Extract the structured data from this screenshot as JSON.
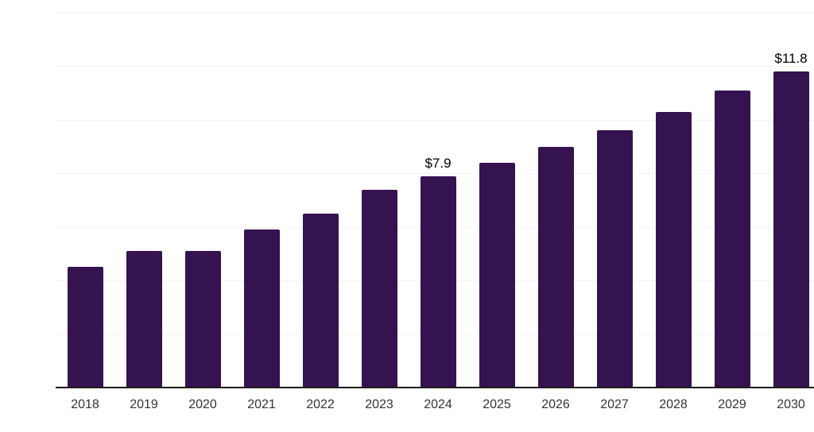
{
  "chart_data": {
    "type": "bar",
    "title": "",
    "xlabel": "",
    "ylabel": "",
    "categories": [
      "2018",
      "2019",
      "2020",
      "2021",
      "2022",
      "2023",
      "2024",
      "2025",
      "2026",
      "2027",
      "2028",
      "2029",
      "2030"
    ],
    "values": [
      4.5,
      5.1,
      5.1,
      5.9,
      6.5,
      7.4,
      7.9,
      8.4,
      9.0,
      9.6,
      10.3,
      11.1,
      11.8
    ],
    "point_labels": [
      "",
      "",
      "",
      "",
      "",
      "",
      "$7.9",
      "",
      "",
      "",
      "",
      "",
      "$11.8"
    ],
    "ylim": [
      0,
      14
    ],
    "grid": true,
    "grid_step": 2,
    "legend": false,
    "bar_color": "#351250",
    "gridline_color": "#f2f2f2",
    "axis_color": "#1c1c1c",
    "tick_label_color": "#333333",
    "data_label_color": "#000000"
  }
}
